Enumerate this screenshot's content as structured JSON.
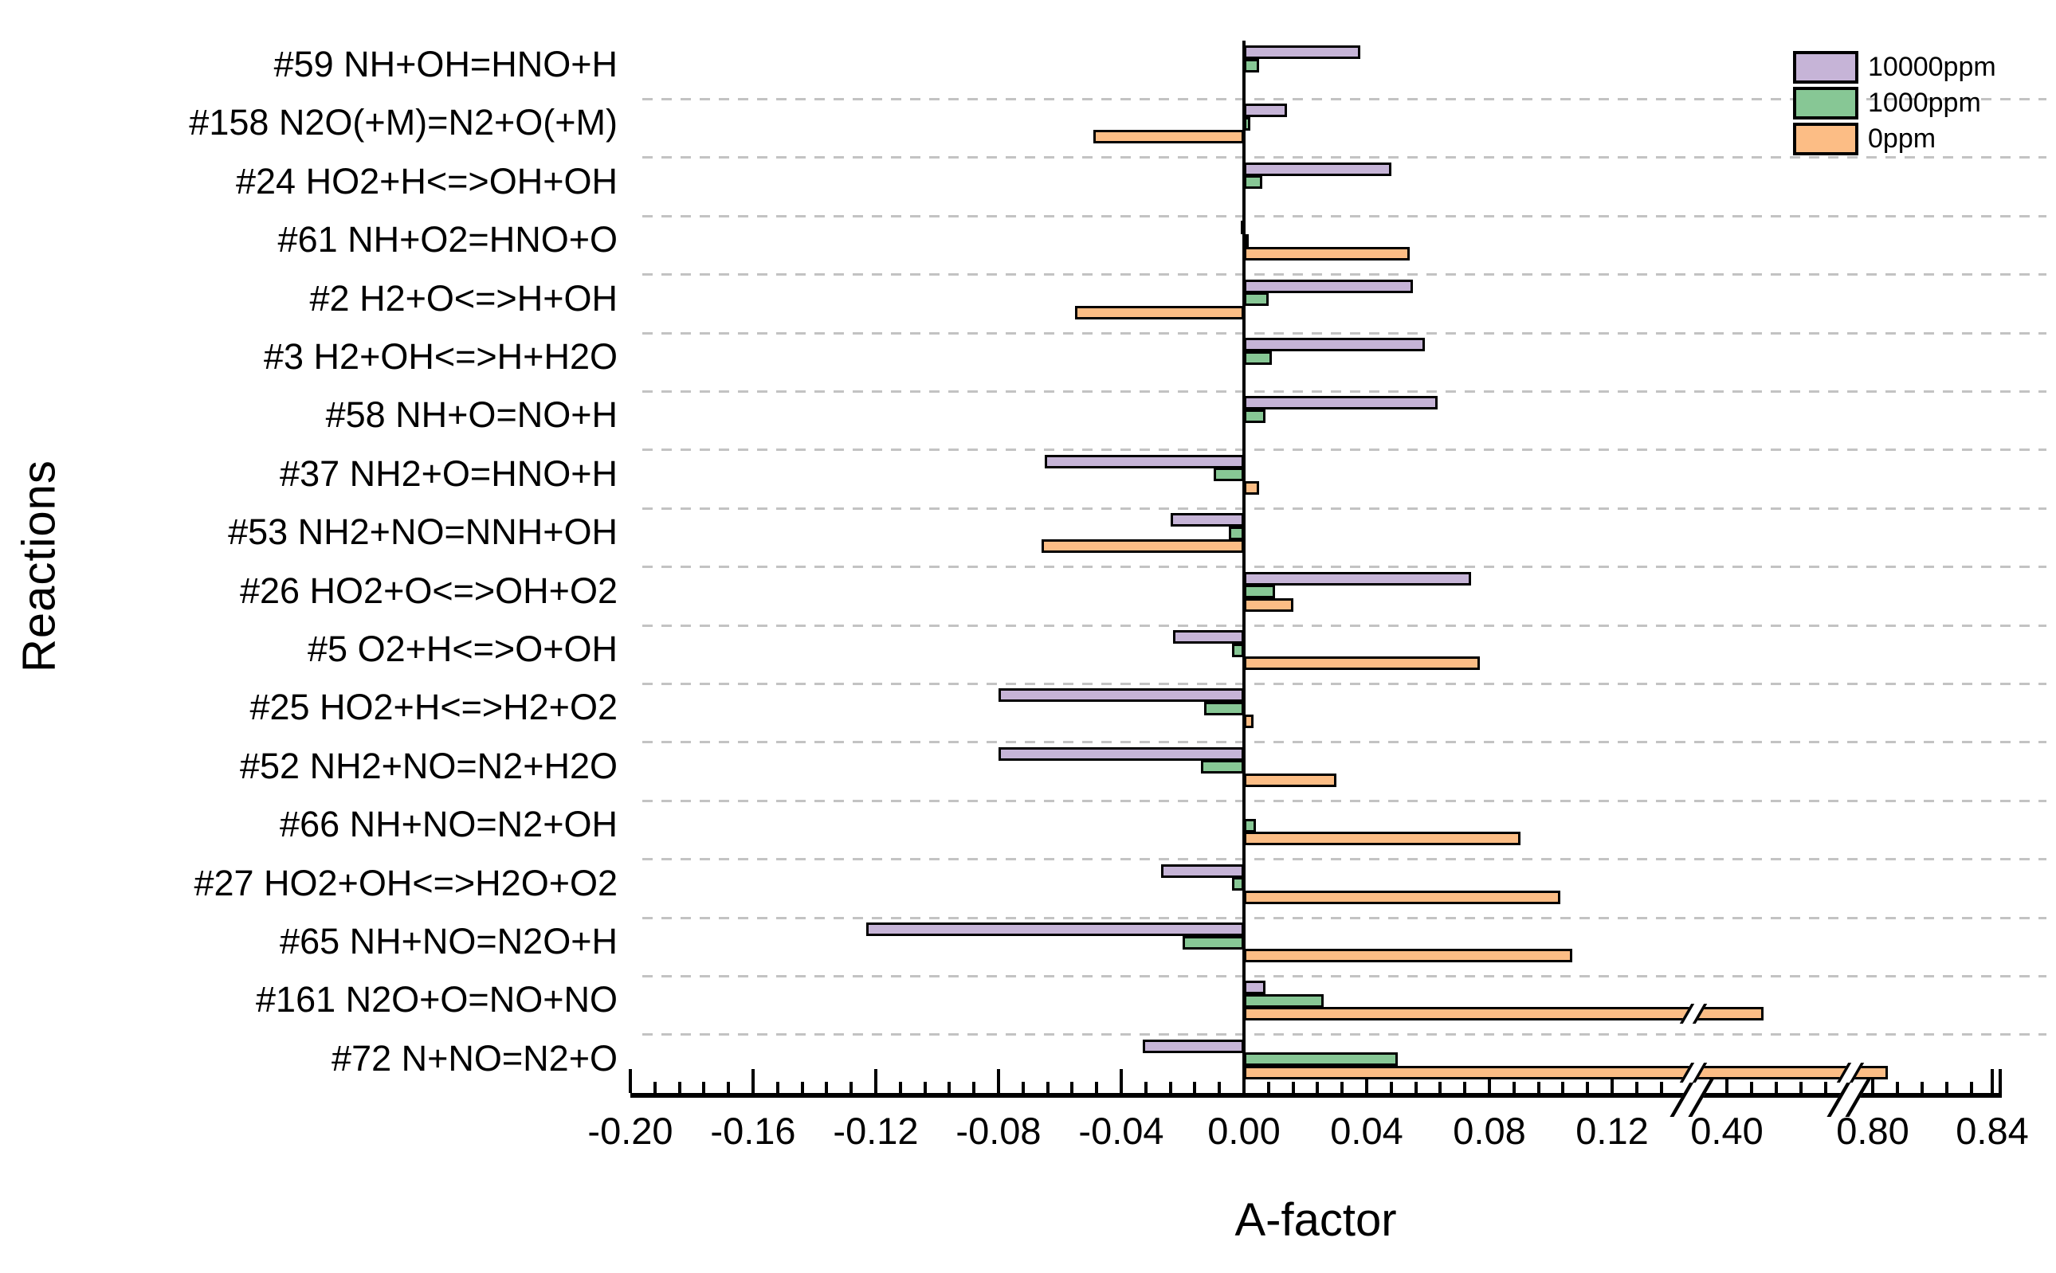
{
  "figure": {
    "y_axis_title": "Reactions",
    "x_axis_title": "A-factor"
  },
  "legend": {
    "items": [
      {
        "label": "10000ppm",
        "color": "#c6b4d7"
      },
      {
        "label": "1000ppm",
        "color": "#87c795"
      },
      {
        "label": "0ppm",
        "color": "#fcbd85"
      }
    ]
  },
  "axis": {
    "tick_labels": [
      "-0.20",
      "-0.16",
      "-0.12",
      "-0.08",
      "-0.04",
      "0.00",
      "0.04",
      "0.08",
      "0.12",
      "0.40",
      "0.80",
      "0.84"
    ],
    "tick_values": [
      -0.2,
      -0.16,
      -0.12,
      -0.08,
      -0.04,
      0.0,
      0.04,
      0.08,
      0.12,
      0.4,
      0.8,
      0.84
    ]
  },
  "chart_data": {
    "type": "bar",
    "orientation": "horizontal",
    "title": "",
    "xlabel": "A-factor",
    "ylabel": "Reactions",
    "xlim": [
      -0.2,
      0.84
    ],
    "grid": "dashed horizontal separators between category rows",
    "legend_position": "top-right",
    "axis_breaks": [
      [
        0.12,
        0.4
      ],
      [
        0.4,
        0.8
      ]
    ],
    "categories": [
      "#59 NH+OH=HNO+H",
      "#158 N2O(+M)=N2+O(+M)",
      "#24 HO2+H<=>OH+OH",
      "#61 NH+O2=HNO+O",
      "#2 H2+O<=>H+OH",
      "#3 H2+OH<=>H+H2O",
      "#58 NH+O=NO+H",
      "#37 NH2+O=HNO+H",
      "#53 NH2+NO=NNH+OH",
      "#26 HO2+O<=>OH+O2",
      "#5 O2+H<=>O+OH",
      "#25 HO2+H<=>H2+O2",
      "#52 NH2+NO=N2+H2O",
      "#66 NH+NO=N2+OH",
      "#27 HO2+OH<=>H2O+O2",
      "#65 NH+NO=N2O+H",
      "#161 N2O+O=NO+NO",
      "#72 N+NO=N2+O"
    ],
    "series": [
      {
        "name": "10000ppm",
        "color": "#c6b4d7",
        "values": [
          0.038,
          0.014,
          0.048,
          -0.001,
          0.055,
          0.059,
          0.063,
          -0.065,
          -0.024,
          0.074,
          -0.023,
          -0.08,
          -0.08,
          null,
          -0.027,
          -0.123,
          0.007,
          -0.033
        ]
      },
      {
        "name": "1000ppm",
        "color": "#87c795",
        "values": [
          0.005,
          0.002,
          0.006,
          0.001,
          0.008,
          0.009,
          0.007,
          -0.01,
          -0.005,
          0.01,
          -0.004,
          -0.013,
          -0.014,
          0.004,
          -0.004,
          -0.02,
          0.026,
          0.05
        ]
      },
      {
        "name": "0ppm",
        "color": "#fcbd85",
        "values": [
          null,
          -0.049,
          null,
          0.054,
          -0.055,
          null,
          null,
          0.005,
          -0.066,
          0.016,
          0.077,
          0.003,
          0.03,
          0.09,
          0.103,
          0.107,
          0.5,
          0.805
        ]
      }
    ]
  }
}
